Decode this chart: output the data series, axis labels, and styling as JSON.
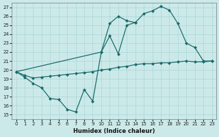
{
  "xlabel": "Humidex (Indice chaleur)",
  "background_color": "#cce9e9",
  "grid_color": "#aad4d4",
  "line_color": "#1a6b6b",
  "xlim": [
    -0.5,
    23.5
  ],
  "ylim": [
    14.5,
    27.5
  ],
  "yticks": [
    15,
    16,
    17,
    18,
    19,
    20,
    21,
    22,
    23,
    24,
    25,
    26,
    27
  ],
  "xticks": [
    0,
    1,
    2,
    3,
    4,
    5,
    6,
    7,
    8,
    9,
    10,
    11,
    12,
    13,
    14,
    15,
    16,
    17,
    18,
    19,
    20,
    21,
    22,
    23
  ],
  "series1_x": [
    0,
    1,
    2,
    3,
    4,
    5,
    6,
    7,
    8,
    9,
    10,
    11,
    12,
    13,
    14
  ],
  "series1_y": [
    19.8,
    19.2,
    18.5,
    18.0,
    16.8,
    16.7,
    15.6,
    15.3,
    17.8,
    16.5,
    22.0,
    25.2,
    26.0,
    25.5,
    25.3
  ],
  "series2_x": [
    0,
    1,
    2,
    3,
    4,
    5,
    6,
    7,
    8,
    9,
    10,
    11,
    12,
    13,
    14,
    15,
    16,
    17,
    18,
    19,
    20,
    21,
    22,
    23
  ],
  "series2_y": [
    19.8,
    19.4,
    19.1,
    19.2,
    19.3,
    19.4,
    19.5,
    19.6,
    19.7,
    19.8,
    20.0,
    20.1,
    20.3,
    20.4,
    20.6,
    20.7,
    20.7,
    20.8,
    20.8,
    20.9,
    21.0,
    20.9,
    20.9,
    21.0
  ],
  "series3_x": [
    0,
    10,
    11,
    12,
    13,
    14,
    15,
    16,
    17,
    18,
    19,
    20,
    21,
    22,
    23
  ],
  "series3_y": [
    19.8,
    22.0,
    23.8,
    21.8,
    25.0,
    25.3,
    26.3,
    26.6,
    27.1,
    26.7,
    25.2,
    23.0,
    22.5,
    21.0,
    21.0
  ]
}
